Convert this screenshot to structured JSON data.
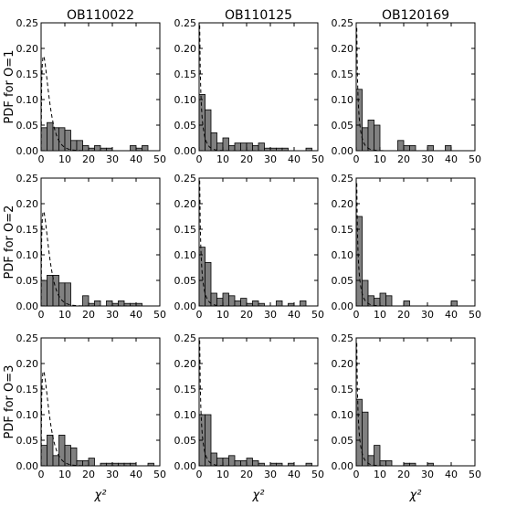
{
  "chart_data": {
    "type": "bar",
    "layout": "3x3 grid of histogram panels with a dashed reference curve",
    "columns": [
      "OB110022",
      "OB110125",
      "OB120169"
    ],
    "rows": [
      "PDF for O=1",
      "PDF for O=2",
      "PDF for O=3"
    ],
    "xlabel": "χ²",
    "xlim": [
      0,
      50
    ],
    "ylim": [
      0,
      0.25
    ],
    "xticks": [
      "0",
      "10",
      "20",
      "30",
      "40",
      "50"
    ],
    "yticks": [
      "0.00",
      "0.05",
      "0.10",
      "0.15",
      "0.20",
      "0.25"
    ],
    "bin_width": 2.5,
    "bar_color": "#808080",
    "curve_style": "dashed",
    "panels": [
      {
        "row": 0,
        "col": 0,
        "values": [
          0.045,
          0.055,
          0.045,
          0.045,
          0.04,
          0.02,
          0.02,
          0.01,
          0.005,
          0.01,
          0.005,
          0.005,
          0,
          0,
          0,
          0.01,
          0.005,
          0.01
        ],
        "curve_peak": 0.185,
        "curve_k": 3
      },
      {
        "row": 0,
        "col": 1,
        "values": [
          0.11,
          0.08,
          0.035,
          0.015,
          0.025,
          0.01,
          0.015,
          0.015,
          0.015,
          0.01,
          0.015,
          0.005,
          0.005,
          0.005,
          0.005,
          0,
          0,
          0,
          0.005
        ],
        "curve_peak": 0.245,
        "curve_k": 1
      },
      {
        "row": 0,
        "col": 2,
        "values": [
          0.12,
          0.045,
          0.06,
          0.05,
          0,
          0,
          0,
          0.02,
          0.01,
          0.01,
          0,
          0,
          0.01,
          0,
          0,
          0.01
        ],
        "curve_peak": 0.24,
        "curve_k": 1
      },
      {
        "row": 1,
        "col": 0,
        "values": [
          0.05,
          0.06,
          0.06,
          0.045,
          0.045,
          0,
          0,
          0.02,
          0.005,
          0.01,
          0,
          0.01,
          0.005,
          0.01,
          0.005,
          0.005,
          0.005
        ],
        "curve_peak": 0.185,
        "curve_k": 3
      },
      {
        "row": 1,
        "col": 1,
        "values": [
          0.115,
          0.085,
          0.025,
          0.015,
          0.025,
          0.02,
          0.01,
          0.015,
          0.005,
          0.01,
          0.005,
          0,
          0,
          0.01,
          0,
          0.005,
          0,
          0.01
        ],
        "curve_peak": 0.245,
        "curve_k": 1
      },
      {
        "row": 1,
        "col": 2,
        "values": [
          0.175,
          0.05,
          0.02,
          0.015,
          0.025,
          0.02,
          0,
          0,
          0.01,
          0,
          0,
          0,
          0,
          0,
          0,
          0,
          0.01
        ],
        "curve_peak": 0.24,
        "curve_k": 1
      },
      {
        "row": 2,
        "col": 0,
        "values": [
          0.04,
          0.06,
          0.02,
          0.06,
          0.04,
          0.035,
          0.01,
          0.01,
          0.015,
          0,
          0.005,
          0.005,
          0.005,
          0.005,
          0.005,
          0.005,
          0,
          0,
          0.005
        ],
        "curve_peak": 0.185,
        "curve_k": 3
      },
      {
        "row": 2,
        "col": 1,
        "values": [
          0.1,
          0.1,
          0.025,
          0.015,
          0.015,
          0.02,
          0.01,
          0.01,
          0.015,
          0.01,
          0.005,
          0,
          0.005,
          0.005,
          0,
          0.005,
          0,
          0,
          0.005
        ],
        "curve_peak": 0.245,
        "curve_k": 1
      },
      {
        "row": 2,
        "col": 2,
        "values": [
          0.13,
          0.105,
          0.02,
          0.04,
          0.01,
          0.01,
          0,
          0,
          0.005,
          0.005,
          0,
          0,
          0.005
        ],
        "curve_peak": 0.24,
        "curve_k": 1
      }
    ]
  }
}
